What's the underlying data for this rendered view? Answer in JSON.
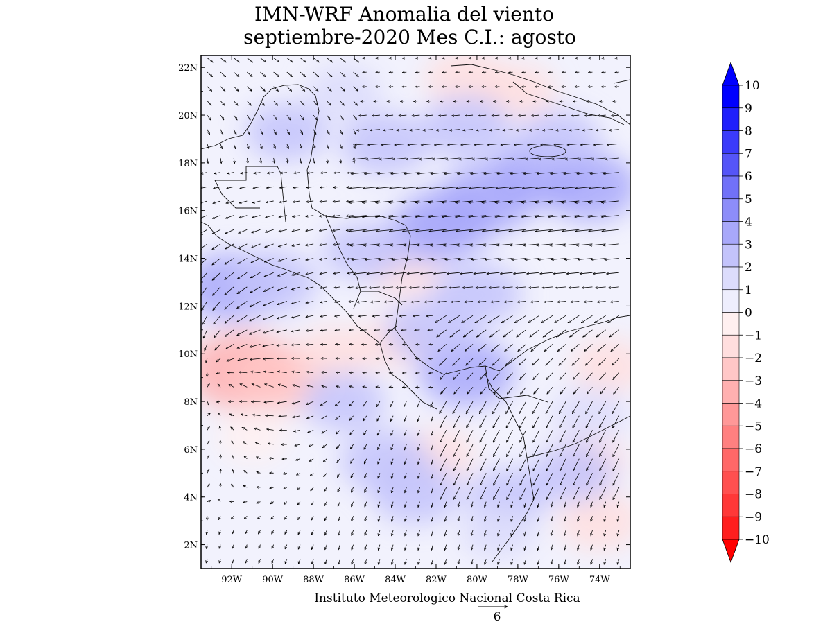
{
  "title": {
    "line1": "IMN-WRF Anomalia del viento",
    "line2": "septiembre-2020 Mes C.I.: agosto"
  },
  "footer": {
    "credit": "Instituto Meteorologico Nacional Costa Rica",
    "reference_vector_label": "6"
  },
  "chart_data": {
    "type": "heatmap",
    "variable": "Anomalia del viento (vectores y magnitud)",
    "x_axis": {
      "range": [
        -93.5,
        -72.5
      ],
      "ticks": [
        -92,
        -90,
        -88,
        -86,
        -84,
        -82,
        -80,
        -78,
        -76,
        -74
      ],
      "tick_labels": [
        "92W",
        "90W",
        "88W",
        "86W",
        "84W",
        "82W",
        "80W",
        "78W",
        "76W",
        "74W"
      ]
    },
    "y_axis": {
      "range": [
        1,
        22.5
      ],
      "ticks": [
        2,
        4,
        6,
        8,
        10,
        12,
        14,
        16,
        18,
        20,
        22
      ],
      "tick_labels": [
        "2N",
        "4N",
        "6N",
        "8N",
        "10N",
        "12N",
        "14N",
        "16N",
        "18N",
        "20N",
        "22N"
      ]
    },
    "colorbar": {
      "labels": [
        "10",
        "9",
        "8",
        "7",
        "6",
        "5",
        "4",
        "3",
        "2",
        "1",
        "0",
        "−1",
        "−2",
        "−3",
        "−4",
        "−5",
        "−6",
        "−7",
        "−8",
        "−9",
        "−10"
      ],
      "levels": [
        10,
        9,
        8,
        7,
        6,
        5,
        4,
        3,
        2,
        1,
        0,
        -1,
        -2,
        -3,
        -4,
        -5,
        -6,
        -7,
        -8,
        -9,
        -10
      ],
      "colors_top_to_bottom": [
        "#0000ff",
        "#1f1ffc",
        "#3b3bfa",
        "#5555f8",
        "#7171f8",
        "#8d8df9",
        "#a8a8fa",
        "#c3c3fb",
        "#dcdcfc",
        "#eeeefd",
        "#fff0f0",
        "#ffdede",
        "#ffc7c7",
        "#ffb0b0",
        "#ff9898",
        "#ff8080",
        "#ff6868",
        "#ff5050",
        "#ff3838",
        "#ff1e1e"
      ],
      "extend_top_color": "#0000ff",
      "extend_bottom_color": "#ff0000"
    },
    "anomaly_regions": [
      {
        "lon": -91.5,
        "lat": 9.3,
        "value": -4
      },
      {
        "lon": -89.5,
        "lat": 9.0,
        "value": -3
      },
      {
        "lon": -87.0,
        "lat": 10.0,
        "value": -1.5
      },
      {
        "lon": -83.5,
        "lat": 13.5,
        "value": -1.5
      },
      {
        "lon": -84.0,
        "lat": 10.5,
        "value": -1.5
      },
      {
        "lon": -80.5,
        "lat": 21.5,
        "value": -2
      },
      {
        "lon": -78.0,
        "lat": 21.0,
        "value": -1.5
      },
      {
        "lon": -82.0,
        "lat": 5.7,
        "value": -1.5
      },
      {
        "lon": -91.0,
        "lat": 6.5,
        "value": -1
      },
      {
        "lon": -74.0,
        "lat": 3.0,
        "value": -2
      },
      {
        "lon": -73.5,
        "lat": 9.5,
        "value": -1.5
      },
      {
        "lon": -74.5,
        "lat": 5.5,
        "value": -1.5
      },
      {
        "lon": -82.5,
        "lat": 15.0,
        "value": 2.5
      },
      {
        "lon": -81.5,
        "lat": 15.5,
        "value": 3
      },
      {
        "lon": -79.5,
        "lat": 16.5,
        "value": 3
      },
      {
        "lon": -77.0,
        "lat": 17.5,
        "value": 3
      },
      {
        "lon": -74.5,
        "lat": 17.0,
        "value": 3
      },
      {
        "lon": -84.5,
        "lat": 18.8,
        "value": 2.5
      },
      {
        "lon": -80.5,
        "lat": 19.5,
        "value": 2.5
      },
      {
        "lon": -76.0,
        "lat": 19.0,
        "value": 2
      },
      {
        "lon": -80.0,
        "lat": 12.5,
        "value": 2.5
      },
      {
        "lon": -80.5,
        "lat": 9.2,
        "value": 3
      },
      {
        "lon": -82.3,
        "lat": 11.0,
        "value": 2.5
      },
      {
        "lon": -92.0,
        "lat": 12.8,
        "value": 3
      },
      {
        "lon": -90.0,
        "lat": 13.0,
        "value": 2.5
      },
      {
        "lon": -85.5,
        "lat": 14.3,
        "value": 2
      },
      {
        "lon": -89.3,
        "lat": 19.3,
        "value": 2
      },
      {
        "lon": -86.5,
        "lat": 21.0,
        "value": 1.5
      },
      {
        "lon": -84.5,
        "lat": 5.5,
        "value": 2.5
      },
      {
        "lon": -83.0,
        "lat": 4.2,
        "value": 2.5
      },
      {
        "lon": -86.5,
        "lat": 8.0,
        "value": 2
      },
      {
        "lon": -78.5,
        "lat": 4.0,
        "value": 2
      },
      {
        "lon": -75.3,
        "lat": 5.0,
        "value": 2
      },
      {
        "lon": -74.5,
        "lat": 7.5,
        "value": 1.5
      },
      {
        "lon": -79.0,
        "lat": 2.5,
        "value": 1.5
      }
    ],
    "wind_vectors_description": "Vectores de anomalia del viento en rejilla regular; flujo del este sobre el Caribe, convergencia ciclonica cerca de 9N 93W"
  }
}
